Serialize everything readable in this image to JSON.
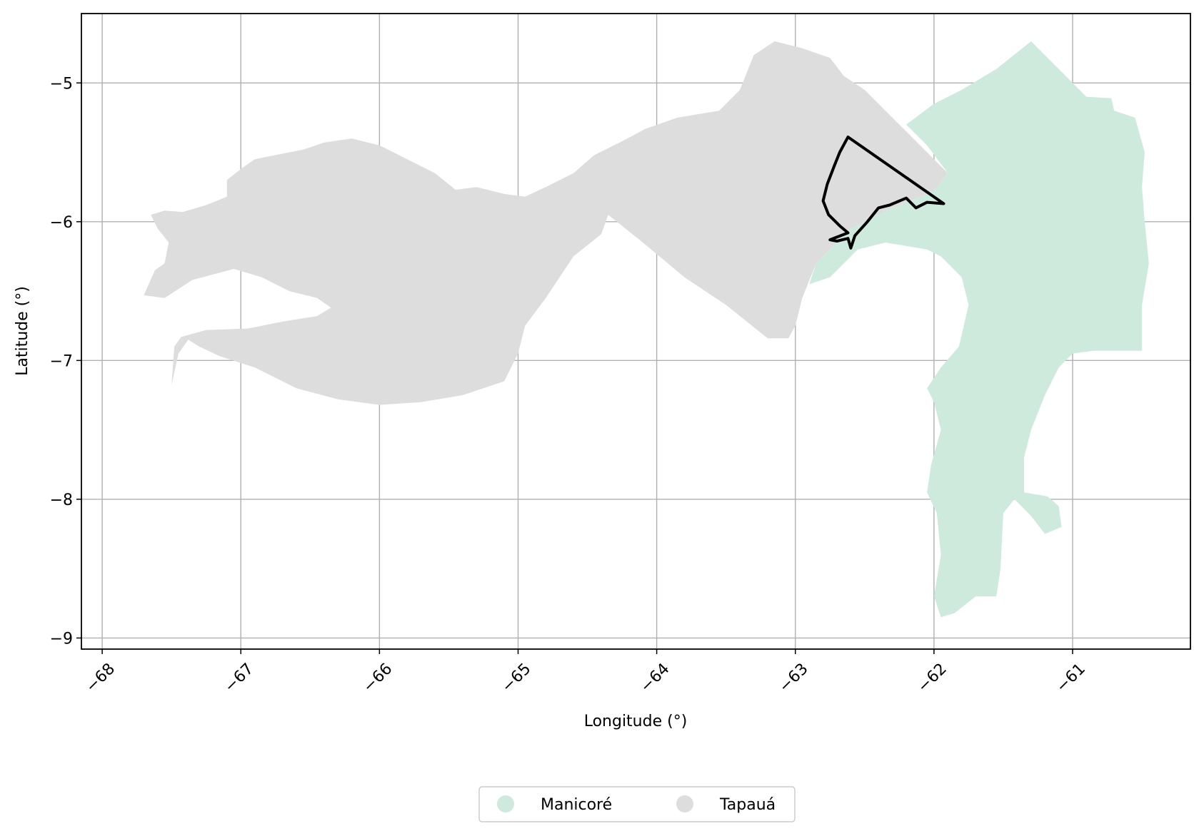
{
  "chart_data": {
    "type": "map",
    "xlabel": "Longitude (°)",
    "ylabel": "Latitude (°)",
    "xlim": [
      -68.15,
      -60.15
    ],
    "ylim": [
      -9.08,
      -4.5
    ],
    "x_ticks": [
      -68,
      -67,
      -66,
      -65,
      -64,
      -63,
      -62,
      -61
    ],
    "x_tick_labels": [
      "−68",
      "−67",
      "−66",
      "−65",
      "−64",
      "−63",
      "−62",
      "−61"
    ],
    "y_ticks": [
      -5,
      -6,
      -7,
      -8,
      -9
    ],
    "y_tick_labels": [
      "−5",
      "−6",
      "−7",
      "−8",
      "−9"
    ],
    "grid": true,
    "legend": {
      "placement": "bottom-center",
      "entries": [
        {
          "label": "Manicoré",
          "color": "#cdeadd"
        },
        {
          "label": "Tapauá",
          "color": "#dddddd"
        }
      ]
    },
    "regions": [
      {
        "name": "Tapauá",
        "color": "#dddddd",
        "coords": [
          [
            -67.7,
            -6.53
          ],
          [
            -67.62,
            -6.35
          ],
          [
            -67.55,
            -6.3
          ],
          [
            -67.52,
            -6.15
          ],
          [
            -67.6,
            -6.05
          ],
          [
            -67.65,
            -5.95
          ],
          [
            -67.55,
            -5.92
          ],
          [
            -67.42,
            -5.93
          ],
          [
            -67.25,
            -5.88
          ],
          [
            -67.1,
            -5.82
          ],
          [
            -67.1,
            -5.7
          ],
          [
            -67.0,
            -5.62
          ],
          [
            -66.9,
            -5.55
          ],
          [
            -66.75,
            -5.52
          ],
          [
            -66.55,
            -5.48
          ],
          [
            -66.4,
            -5.43
          ],
          [
            -66.2,
            -5.4
          ],
          [
            -66.0,
            -5.45
          ],
          [
            -65.8,
            -5.55
          ],
          [
            -65.6,
            -5.65
          ],
          [
            -65.45,
            -5.77
          ],
          [
            -65.3,
            -5.75
          ],
          [
            -65.1,
            -5.8
          ],
          [
            -64.95,
            -5.82
          ],
          [
            -64.8,
            -5.75
          ],
          [
            -64.6,
            -5.65
          ],
          [
            -64.45,
            -5.52
          ],
          [
            -64.25,
            -5.42
          ],
          [
            -64.08,
            -5.33
          ],
          [
            -63.85,
            -5.25
          ],
          [
            -63.55,
            -5.2
          ],
          [
            -63.4,
            -5.05
          ],
          [
            -63.3,
            -4.8
          ],
          [
            -63.15,
            -4.7
          ],
          [
            -62.95,
            -4.75
          ],
          [
            -62.75,
            -4.82
          ],
          [
            -62.65,
            -4.95
          ],
          [
            -62.5,
            -5.05
          ],
          [
            -62.3,
            -5.25
          ],
          [
            -62.1,
            -5.45
          ],
          [
            -61.9,
            -5.65
          ],
          [
            -62.0,
            -5.78
          ],
          [
            -62.3,
            -5.9
          ],
          [
            -62.6,
            -6.05
          ],
          [
            -62.85,
            -6.3
          ],
          [
            -62.95,
            -6.55
          ],
          [
            -63.0,
            -6.75
          ],
          [
            -63.05,
            -6.84
          ],
          [
            -63.2,
            -6.84
          ],
          [
            -63.5,
            -6.6
          ],
          [
            -63.8,
            -6.4
          ],
          [
            -64.1,
            -6.15
          ],
          [
            -64.35,
            -5.95
          ],
          [
            -64.4,
            -6.09
          ],
          [
            -64.6,
            -6.25
          ],
          [
            -64.8,
            -6.55
          ],
          [
            -64.95,
            -6.75
          ],
          [
            -65.0,
            -6.95
          ],
          [
            -65.1,
            -7.15
          ],
          [
            -65.4,
            -7.25
          ],
          [
            -65.7,
            -7.3
          ],
          [
            -66.0,
            -7.32
          ],
          [
            -66.3,
            -7.28
          ],
          [
            -66.6,
            -7.2
          ],
          [
            -66.9,
            -7.05
          ],
          [
            -67.15,
            -6.97
          ],
          [
            -67.3,
            -6.9
          ],
          [
            -67.38,
            -6.85
          ],
          [
            -67.45,
            -6.95
          ],
          [
            -67.5,
            -7.18
          ],
          [
            -67.48,
            -6.9
          ],
          [
            -67.43,
            -6.83
          ],
          [
            -67.25,
            -6.78
          ],
          [
            -66.95,
            -6.77
          ],
          [
            -66.7,
            -6.72
          ],
          [
            -66.45,
            -6.68
          ],
          [
            -66.35,
            -6.62
          ],
          [
            -66.45,
            -6.55
          ],
          [
            -66.65,
            -6.5
          ],
          [
            -66.85,
            -6.4
          ],
          [
            -67.05,
            -6.34
          ],
          [
            -67.35,
            -6.42
          ],
          [
            -67.55,
            -6.55
          ],
          [
            -67.7,
            -6.53
          ]
        ]
      },
      {
        "name": "Manicoré",
        "color": "#cdeadd",
        "coords": [
          [
            -61.3,
            -4.7
          ],
          [
            -61.1,
            -4.9
          ],
          [
            -60.9,
            -5.1
          ],
          [
            -60.72,
            -5.11
          ],
          [
            -60.7,
            -5.2
          ],
          [
            -60.55,
            -5.25
          ],
          [
            -60.48,
            -5.5
          ],
          [
            -60.5,
            -5.75
          ],
          [
            -60.48,
            -6.0
          ],
          [
            -60.45,
            -6.3
          ],
          [
            -60.5,
            -6.6
          ],
          [
            -60.5,
            -6.93
          ],
          [
            -60.7,
            -6.93
          ],
          [
            -60.85,
            -6.93
          ],
          [
            -61.0,
            -6.95
          ],
          [
            -61.1,
            -7.05
          ],
          [
            -61.2,
            -7.25
          ],
          [
            -61.3,
            -7.5
          ],
          [
            -61.35,
            -7.7
          ],
          [
            -61.35,
            -7.95
          ],
          [
            -61.18,
            -7.98
          ],
          [
            -61.1,
            -8.05
          ],
          [
            -61.08,
            -8.2
          ],
          [
            -61.2,
            -8.25
          ],
          [
            -61.3,
            -8.12
          ],
          [
            -61.42,
            -8.0
          ],
          [
            -61.5,
            -8.1
          ],
          [
            -61.52,
            -8.5
          ],
          [
            -61.55,
            -8.7
          ],
          [
            -61.7,
            -8.7
          ],
          [
            -61.85,
            -8.82
          ],
          [
            -61.95,
            -8.85
          ],
          [
            -62.0,
            -8.7
          ],
          [
            -61.95,
            -8.4
          ],
          [
            -61.98,
            -8.1
          ],
          [
            -62.05,
            -7.95
          ],
          [
            -62.02,
            -7.75
          ],
          [
            -61.95,
            -7.5
          ],
          [
            -62.0,
            -7.3
          ],
          [
            -62.05,
            -7.2
          ],
          [
            -61.95,
            -7.05
          ],
          [
            -61.82,
            -6.9
          ],
          [
            -61.75,
            -6.6
          ],
          [
            -61.8,
            -6.4
          ],
          [
            -61.95,
            -6.25
          ],
          [
            -62.05,
            -6.2
          ],
          [
            -62.35,
            -6.15
          ],
          [
            -62.55,
            -6.2
          ],
          [
            -62.75,
            -6.4
          ],
          [
            -62.9,
            -6.45
          ],
          [
            -62.85,
            -6.3
          ],
          [
            -62.6,
            -6.05
          ],
          [
            -62.3,
            -5.9
          ],
          [
            -62.0,
            -5.78
          ],
          [
            -61.9,
            -5.65
          ],
          [
            -62.05,
            -5.45
          ],
          [
            -62.2,
            -5.3
          ],
          [
            -62.0,
            -5.15
          ],
          [
            -61.8,
            -5.05
          ],
          [
            -61.55,
            -4.9
          ],
          [
            -61.3,
            -4.7
          ]
        ]
      }
    ],
    "boundary": {
      "color": "#000000",
      "coords": [
        [
          -62.62,
          -5.39
        ],
        [
          -61.93,
          -5.87
        ],
        [
          -62.05,
          -5.86
        ],
        [
          -62.13,
          -5.9
        ],
        [
          -62.2,
          -5.83
        ],
        [
          -62.32,
          -5.88
        ],
        [
          -62.4,
          -5.9
        ],
        [
          -62.48,
          -6.0
        ],
        [
          -62.57,
          -6.1
        ],
        [
          -62.6,
          -6.19
        ],
        [
          -62.62,
          -6.12
        ],
        [
          -62.7,
          -6.14
        ],
        [
          -62.75,
          -6.13
        ],
        [
          -62.62,
          -6.08
        ],
        [
          -62.68,
          -6.03
        ],
        [
          -62.76,
          -5.95
        ],
        [
          -62.8,
          -5.85
        ],
        [
          -62.77,
          -5.73
        ],
        [
          -62.72,
          -5.6
        ],
        [
          -62.68,
          -5.5
        ],
        [
          -62.62,
          -5.39
        ]
      ]
    }
  }
}
